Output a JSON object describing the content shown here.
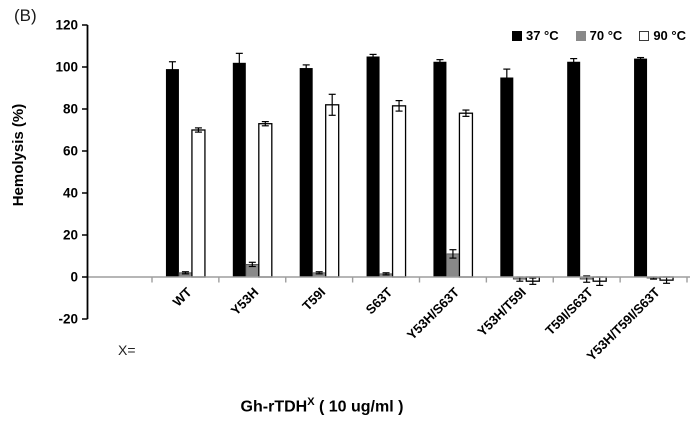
{
  "panel_label": "(B)",
  "ylabel": "Hemolysis (%)",
  "x_prefix_label": "X=",
  "xtitle": {
    "base": "Gh-rTDH",
    "sup": "X",
    "rest": " ( 10 ug/ml )"
  },
  "legend": [
    {
      "label": "37 °C",
      "color": "#000000",
      "outline": "none"
    },
    {
      "label": "70 °C",
      "color": "#898989",
      "outline": "none"
    },
    {
      "label": "90 °C",
      "color": "#ffffff",
      "outline": "#3a3a3a"
    }
  ],
  "chart_data": {
    "type": "bar",
    "title": "Gh-rTDH^X ( 10 ug/ml )",
    "xlabel": "Gh-rTDH^X ( 10 ug/ml )",
    "ylabel": "Hemolysis (%)",
    "ylim": [
      -20,
      120
    ],
    "ytick_step": 20,
    "yticks": [
      -20,
      0,
      20,
      40,
      60,
      80,
      100,
      120
    ],
    "grid": false,
    "legend_position": "top-right",
    "error_bars": true,
    "categories": [
      "WT",
      "Y53H",
      "T59I",
      "S63T",
      "Y53H/S63T",
      "Y53H/T59I",
      "T59I/S63T",
      "Y53H/T59I/S63T"
    ],
    "series": [
      {
        "name": "37 °C",
        "color": "#000000",
        "values": [
          99,
          102,
          99.5,
          105,
          102.5,
          95,
          102.5,
          104
        ],
        "errors": [
          3.5,
          4.5,
          1.5,
          1,
          1,
          4,
          1.5,
          0.5
        ]
      },
      {
        "name": "70 °C",
        "color": "#898989",
        "values": [
          2,
          6,
          2,
          1.5,
          11,
          -1,
          -1,
          -0.5
        ],
        "errors": [
          0.5,
          1,
          0.5,
          0.5,
          2,
          1,
          1.5,
          0.5
        ]
      },
      {
        "name": "90 °C",
        "color": "#ffffff",
        "values": [
          70,
          73,
          82,
          81.5,
          78,
          -2,
          -2,
          -1.5
        ],
        "errors": [
          1,
          1,
          5,
          2.5,
          1.5,
          1.5,
          2,
          1.5
        ]
      }
    ]
  }
}
